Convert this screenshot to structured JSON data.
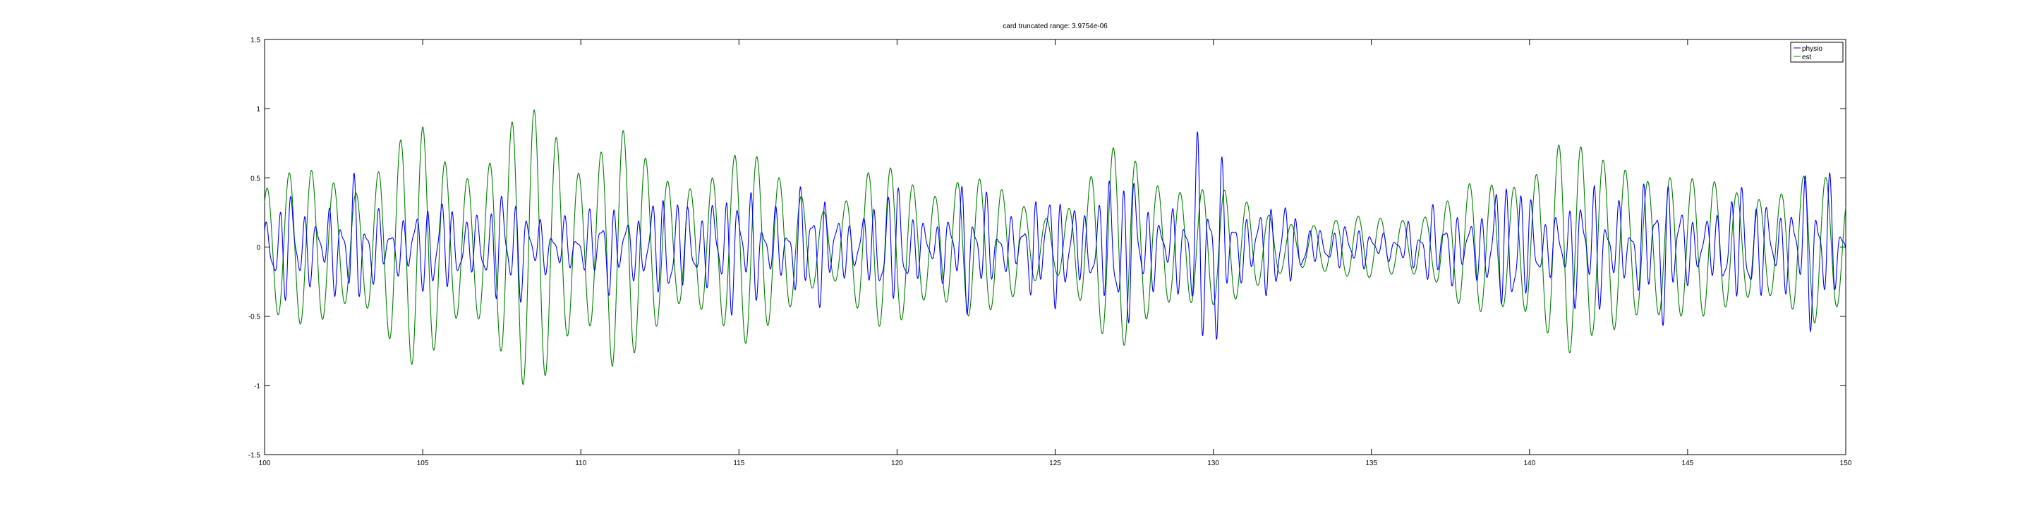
{
  "figure": {
    "background": "#ffffff"
  },
  "chart_data": {
    "type": "line",
    "title": "card truncated range: 3.9754e-06",
    "xlabel": "",
    "ylabel": "",
    "xlim": [
      100,
      150
    ],
    "ylim": [
      -1.5,
      1.5
    ],
    "x_ticks": [
      100,
      105,
      110,
      115,
      120,
      125,
      130,
      135,
      140,
      145,
      150
    ],
    "y_ticks": [
      -1.5,
      -1,
      -0.5,
      0,
      0.5,
      1,
      1.5
    ],
    "x_tick_labels": [
      "100",
      "105",
      "110",
      "115",
      "120",
      "125",
      "130",
      "135",
      "140",
      "145",
      "150"
    ],
    "y_tick_labels": [
      "-1.5",
      "-1",
      "-0.5",
      "0",
      "0.5",
      "1",
      "1.5"
    ],
    "grid": false,
    "legend_position": "top-right",
    "series": [
      {
        "name": "physio",
        "color": "#0000ff",
        "envelope": {
          "x": [
            100,
            101,
            102,
            103,
            104,
            105,
            106,
            107,
            108,
            109,
            110,
            111,
            112,
            113,
            114,
            115,
            116,
            117,
            118,
            119,
            120,
            121,
            122,
            123,
            124,
            125,
            126,
            127,
            128,
            129,
            130,
            131,
            132,
            133,
            134,
            135,
            136,
            137,
            138,
            139,
            140,
            141,
            142,
            143,
            144,
            145,
            146,
            147,
            148,
            149,
            150
          ],
          "y": [
            0.2,
            0.6,
            0.45,
            0.5,
            0.4,
            0.35,
            0.5,
            0.45,
            0.45,
            0.4,
            0.15,
            0.6,
            0.35,
            0.5,
            0.6,
            0.45,
            0.55,
            0.5,
            0.4,
            0.45,
            0.5,
            0.35,
            0.5,
            0.45,
            0.4,
            0.5,
            0.6,
            0.65,
            0.55,
            0.5,
            1.05,
            0.45,
            0.4,
            0.3,
            0.2,
            0.15,
            0.25,
            0.3,
            0.45,
            0.55,
            0.55,
            0.45,
            0.5,
            0.6,
            0.6,
            0.45,
            0.45,
            0.5,
            0.6,
            0.65,
            0.45
          ]
        }
      },
      {
        "name": "est",
        "color": "#008000",
        "envelope": {
          "x": [
            100,
            101,
            102,
            103,
            104,
            105,
            106,
            107,
            108,
            109,
            110,
            111,
            112,
            113,
            114,
            115,
            116,
            117,
            118,
            119,
            120,
            121,
            122,
            123,
            124,
            125,
            126,
            127,
            128,
            129,
            130,
            131,
            132,
            133,
            134,
            135,
            136,
            137,
            138,
            139,
            140,
            141,
            142,
            143,
            144,
            145,
            146,
            147,
            148,
            149,
            150
          ],
          "y": [
            0.5,
            0.55,
            0.65,
            0.6,
            0.75,
            0.9,
            0.75,
            0.8,
            1.0,
            1.0,
            0.8,
            1.1,
            0.65,
            0.5,
            0.75,
            0.8,
            0.55,
            0.5,
            0.35,
            0.55,
            0.6,
            0.55,
            0.65,
            0.45,
            0.35,
            0.3,
            0.55,
            0.75,
            0.65,
            0.6,
            0.45,
            0.35,
            0.3,
            0.2,
            0.2,
            0.25,
            0.3,
            0.3,
            0.45,
            0.55,
            0.75,
            0.85,
            0.65,
            0.8,
            0.7,
            0.5,
            0.5,
            0.55,
            0.5,
            0.55,
            0.45
          ]
        }
      }
    ]
  }
}
